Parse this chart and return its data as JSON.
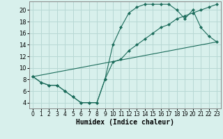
{
  "title": "",
  "xlabel": "Humidex (Indice chaleur)",
  "ylabel": "",
  "background_color": "#d8f0ec",
  "grid_color": "#b8d8d4",
  "line_color": "#1a6b5a",
  "xlim": [
    -0.5,
    23.5
  ],
  "ylim": [
    3.0,
    21.5
  ],
  "yticks": [
    4,
    6,
    8,
    10,
    12,
    14,
    16,
    18,
    20
  ],
  "xticks": [
    0,
    1,
    2,
    3,
    4,
    5,
    6,
    7,
    8,
    9,
    10,
    11,
    12,
    13,
    14,
    15,
    16,
    17,
    18,
    19,
    20,
    21,
    22,
    23
  ],
  "series": [
    {
      "x": [
        0,
        1,
        2,
        3,
        4,
        5,
        6,
        7,
        8,
        9,
        10,
        11,
        12,
        13,
        14,
        15,
        16,
        17,
        18,
        19,
        20,
        21,
        22,
        23
      ],
      "y": [
        8.5,
        7.5,
        7.0,
        7.0,
        6.0,
        5.0,
        4.0,
        4.0,
        4.0,
        8.0,
        14.0,
        17.0,
        19.5,
        20.5,
        21.0,
        21.0,
        21.0,
        21.0,
        20.0,
        18.5,
        20.0,
        17.0,
        15.5,
        14.5
      ],
      "has_markers": true
    },
    {
      "x": [
        0,
        1,
        2,
        3,
        4,
        5,
        6,
        7,
        8,
        9,
        10,
        11,
        12,
        13,
        14,
        15,
        16,
        17,
        18,
        19,
        20,
        21,
        22,
        23
      ],
      "y": [
        8.5,
        7.5,
        7.0,
        7.0,
        6.0,
        5.0,
        4.0,
        4.0,
        4.0,
        8.0,
        11.0,
        11.5,
        13.0,
        14.0,
        15.0,
        16.0,
        17.0,
        17.5,
        18.5,
        19.0,
        19.5,
        20.0,
        20.5,
        21.0
      ],
      "has_markers": true
    },
    {
      "x": [
        0,
        23
      ],
      "y": [
        8.5,
        14.5
      ],
      "has_markers": false
    }
  ]
}
